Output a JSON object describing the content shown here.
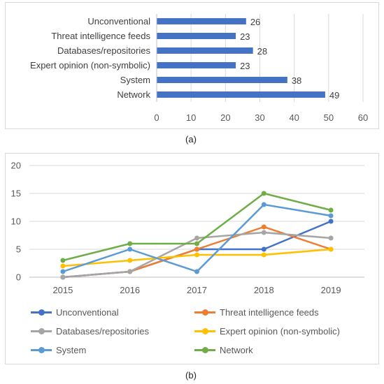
{
  "chart_data": [
    {
      "type": "bar",
      "orientation": "horizontal",
      "categories": [
        "Unconventional",
        "Threat intelligence feeds",
        "Databases/repositories",
        "Expert opinion (non-symbolic)",
        "System",
        "Network"
      ],
      "values": [
        26,
        23,
        28,
        23,
        38,
        49
      ],
      "value_labels": [
        "26",
        "23",
        "28",
        "23",
        "38",
        "49"
      ],
      "xlim": [
        0,
        60
      ],
      "xticks": [
        0,
        10,
        20,
        30,
        40,
        50,
        60
      ],
      "xtick_labels": [
        "0",
        "10",
        "20",
        "30",
        "40",
        "50",
        "60"
      ],
      "grid": "vertical",
      "bar_color": "#4472c4",
      "caption": "(a)"
    },
    {
      "type": "line",
      "x": [
        "2015",
        "2016",
        "2017",
        "2018",
        "2019"
      ],
      "ylim": [
        0,
        20
      ],
      "yticks": [
        0,
        5,
        10,
        15,
        20
      ],
      "ytick_labels": [
        "0",
        "5",
        "10",
        "15",
        "20"
      ],
      "grid": "horizontal",
      "legend": "bottom",
      "series": [
        {
          "name": "Unconventional",
          "values": [
            0,
            1,
            5,
            5,
            10
          ],
          "color": "#4472c4"
        },
        {
          "name": "Threat intelligence feeds",
          "values": [
            0,
            1,
            5,
            9,
            5
          ],
          "color": "#ed7d31"
        },
        {
          "name": "Databases/repositories",
          "values": [
            0,
            1,
            7,
            8,
            7
          ],
          "color": "#a5a5a5"
        },
        {
          "name": "Expert opinion (non-symbolic)",
          "values": [
            2,
            3,
            4,
            4,
            5
          ],
          "color": "#ffc000"
        },
        {
          "name": "System",
          "values": [
            1,
            5,
            1,
            13,
            11
          ],
          "color": "#5b9bd5"
        },
        {
          "name": "Network",
          "values": [
            3,
            6,
            6,
            15,
            12
          ],
          "color": "#70ad47"
        }
      ],
      "caption": "(b)"
    }
  ]
}
